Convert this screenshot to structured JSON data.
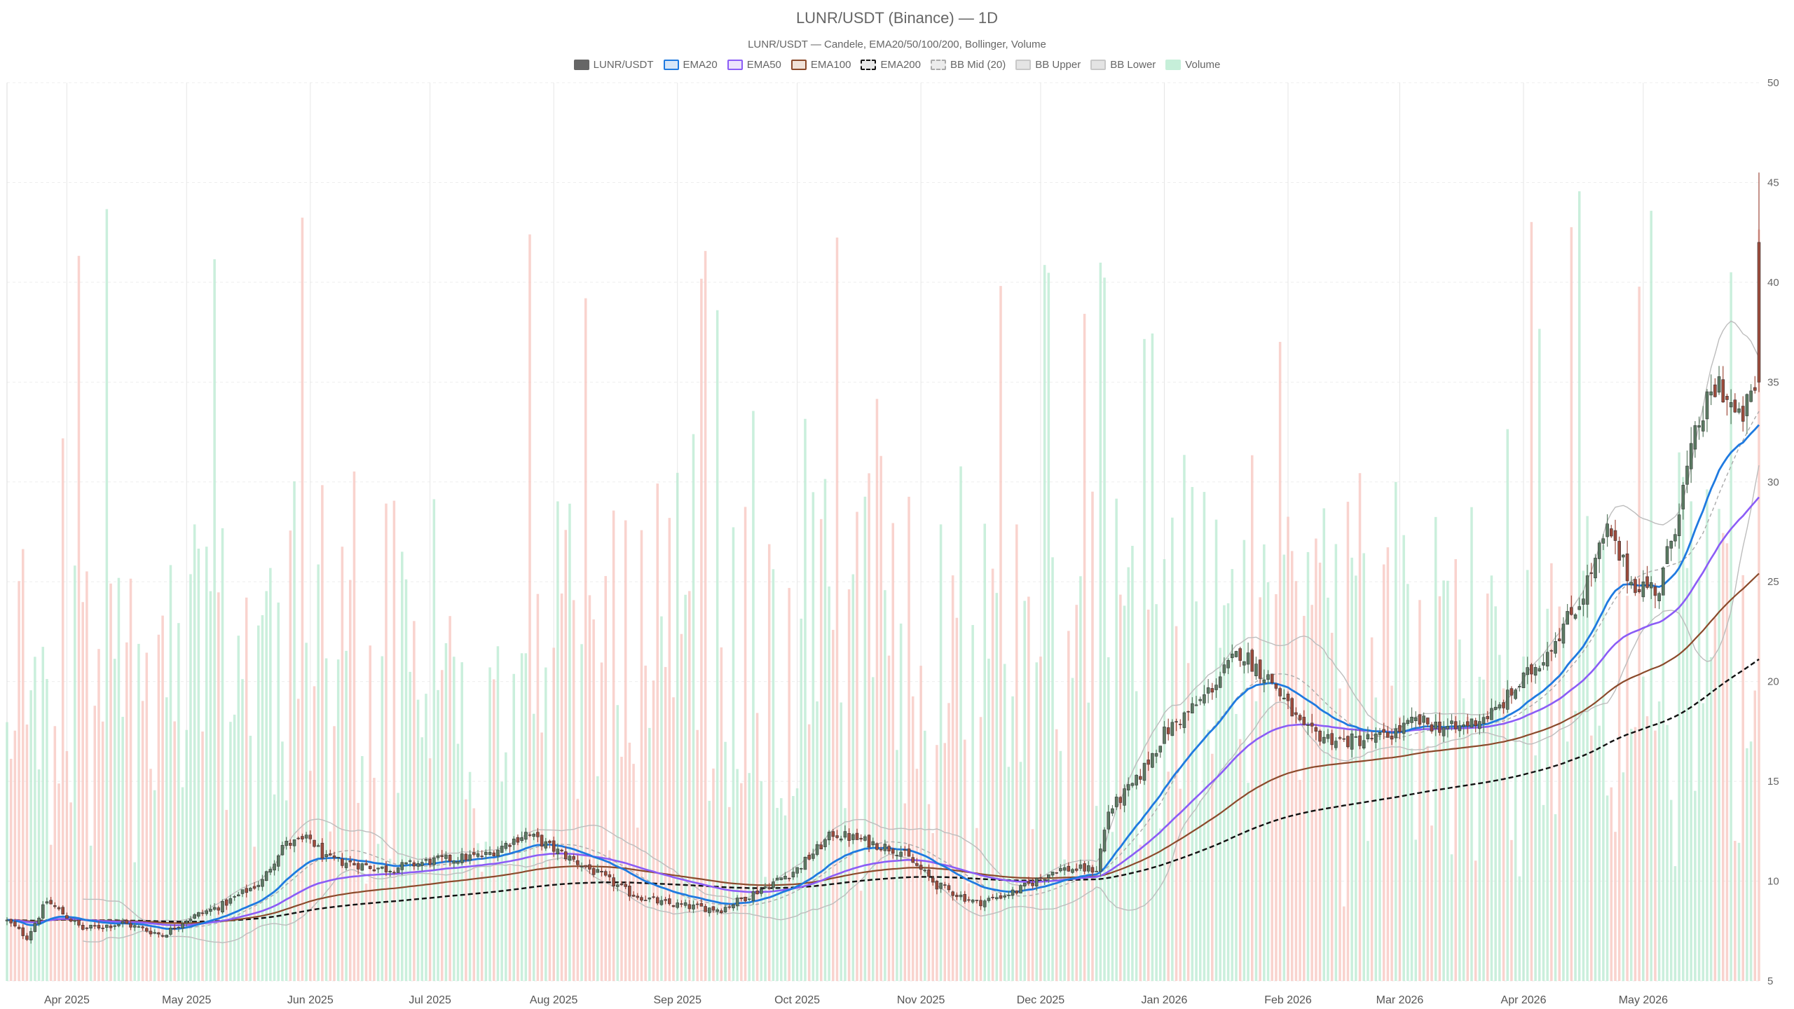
{
  "chart_data": {
    "type": "candlestick",
    "title": "LUNR/USDT (Binance) — 1D",
    "subtitle": "LUNR/USDT — Candele, EMA20/50/100/200, Bollinger, Volume",
    "y_axis": {
      "ylim": [
        5,
        50
      ],
      "ticks": [
        5,
        10,
        15,
        20,
        25,
        30,
        35,
        40,
        45,
        50
      ],
      "position": "right"
    },
    "x_axis": {
      "start": "2025-03-17",
      "end": "2026-05-30",
      "ticks": [
        {
          "date": "2025-04-01",
          "label": "Apr 2025"
        },
        {
          "date": "2025-05-01",
          "label": "May 2025"
        },
        {
          "date": "2025-06-01",
          "label": "Jun 2025"
        },
        {
          "date": "2025-07-01",
          "label": "Jul 2025"
        },
        {
          "date": "2025-08-01",
          "label": "Aug 2025"
        },
        {
          "date": "2025-09-01",
          "label": "Sep 2025"
        },
        {
          "date": "2025-10-01",
          "label": "Oct 2025"
        },
        {
          "date": "2025-11-01",
          "label": "Nov 2025"
        },
        {
          "date": "2025-12-01",
          "label": "Dec 2025"
        },
        {
          "date": "2026-01-01",
          "label": "Jan 2026"
        },
        {
          "date": "2026-02-01",
          "label": "Feb 2026"
        },
        {
          "date": "2026-03-01",
          "label": "Mar 2026"
        },
        {
          "date": "2026-04-01",
          "label": "Apr 2026"
        },
        {
          "date": "2026-05-01",
          "label": "May 2026"
        }
      ]
    },
    "grid": true,
    "legend_position": "top-center",
    "legend": [
      {
        "name": "LUNR/USDT",
        "fill": "#666666",
        "stroke": "#666666",
        "dashed": false
      },
      {
        "name": "EMA20",
        "fill": "#d6e6f8",
        "stroke": "#1f7ae0",
        "dashed": false
      },
      {
        "name": "EMA50",
        "fill": "#ece2fb",
        "stroke": "#8b5cf6",
        "dashed": false
      },
      {
        "name": "EMA100",
        "fill": "#f1e2d8",
        "stroke": "#8b4a2b",
        "dashed": false
      },
      {
        "name": "EMA200",
        "fill": "#e8e8e8",
        "stroke": "#111111",
        "dashed": true
      },
      {
        "name": "BB Mid (20)",
        "fill": "#ececec",
        "stroke": "#aaaaaa",
        "dashed": true
      },
      {
        "name": "BB Upper",
        "fill": "#e4e4e4",
        "stroke": "#c8c8c8",
        "dashed": false
      },
      {
        "name": "BB Lower",
        "fill": "#e4e4e4",
        "stroke": "#c8c8c8",
        "dashed": false
      },
      {
        "name": "Volume",
        "fill": "#c6efd9",
        "stroke": "#c6efd9",
        "dashed": false
      }
    ],
    "colors": {
      "up": "#5b7b63",
      "down": "#9e4b3c",
      "vol_up": "#b8ead0",
      "vol_down": "#f7c4bd"
    },
    "close_anchors": [
      [
        "2025-03-17",
        8.0
      ],
      [
        "2025-03-22",
        7.2
      ],
      [
        "2025-03-27",
        9.0
      ],
      [
        "2025-04-05",
        7.6
      ],
      [
        "2025-04-15",
        7.9
      ],
      [
        "2025-04-25",
        7.3
      ],
      [
        "2025-05-01",
        8.1
      ],
      [
        "2025-05-10",
        8.8
      ],
      [
        "2025-05-20",
        10.0
      ],
      [
        "2025-05-25",
        11.8
      ],
      [
        "2025-06-01",
        12.1
      ],
      [
        "2025-06-05",
        11.1
      ],
      [
        "2025-06-20",
        10.6
      ],
      [
        "2025-07-01",
        11.0
      ],
      [
        "2025-07-15",
        11.3
      ],
      [
        "2025-07-25",
        12.4
      ],
      [
        "2025-08-01",
        11.6
      ],
      [
        "2025-08-10",
        10.6
      ],
      [
        "2025-08-20",
        9.4
      ],
      [
        "2025-08-28",
        8.9
      ],
      [
        "2025-09-05",
        8.7
      ],
      [
        "2025-09-12",
        8.6
      ],
      [
        "2025-09-22",
        9.6
      ],
      [
        "2025-10-01",
        10.6
      ],
      [
        "2025-10-10",
        12.4
      ],
      [
        "2025-10-20",
        11.9
      ],
      [
        "2025-10-27",
        11.5
      ],
      [
        "2025-11-05",
        9.8
      ],
      [
        "2025-11-15",
        8.9
      ],
      [
        "2025-11-25",
        9.5
      ],
      [
        "2025-12-05",
        10.6
      ],
      [
        "2025-12-15",
        10.6
      ],
      [
        "2025-12-18",
        13.5
      ],
      [
        "2025-12-25",
        15.0
      ],
      [
        "2026-01-01",
        17.4
      ],
      [
        "2026-01-10",
        19.0
      ],
      [
        "2026-01-20",
        21.5
      ],
      [
        "2026-01-28",
        20.0
      ],
      [
        "2026-02-05",
        17.5
      ],
      [
        "2026-02-15",
        17.0
      ],
      [
        "2026-02-25",
        17.2
      ],
      [
        "2026-03-05",
        18.0
      ],
      [
        "2026-03-15",
        17.6
      ],
      [
        "2026-03-25",
        18.5
      ],
      [
        "2026-04-05",
        21.0
      ],
      [
        "2026-04-15",
        24.0
      ],
      [
        "2026-04-22",
        27.5
      ],
      [
        "2026-04-28",
        25.0
      ],
      [
        "2026-05-05",
        24.6
      ],
      [
        "2026-05-15",
        33.0
      ],
      [
        "2026-05-20",
        35.0
      ],
      [
        "2026-05-25",
        33.0
      ],
      [
        "2026-05-30",
        35.0
      ]
    ],
    "final_candle": {
      "date": "2026-05-30",
      "open": 42.0,
      "high": 45.5,
      "low": 34.5,
      "close": 35.0
    },
    "volume_scale": {
      "max_fraction_of_plot": 0.89
    }
  }
}
